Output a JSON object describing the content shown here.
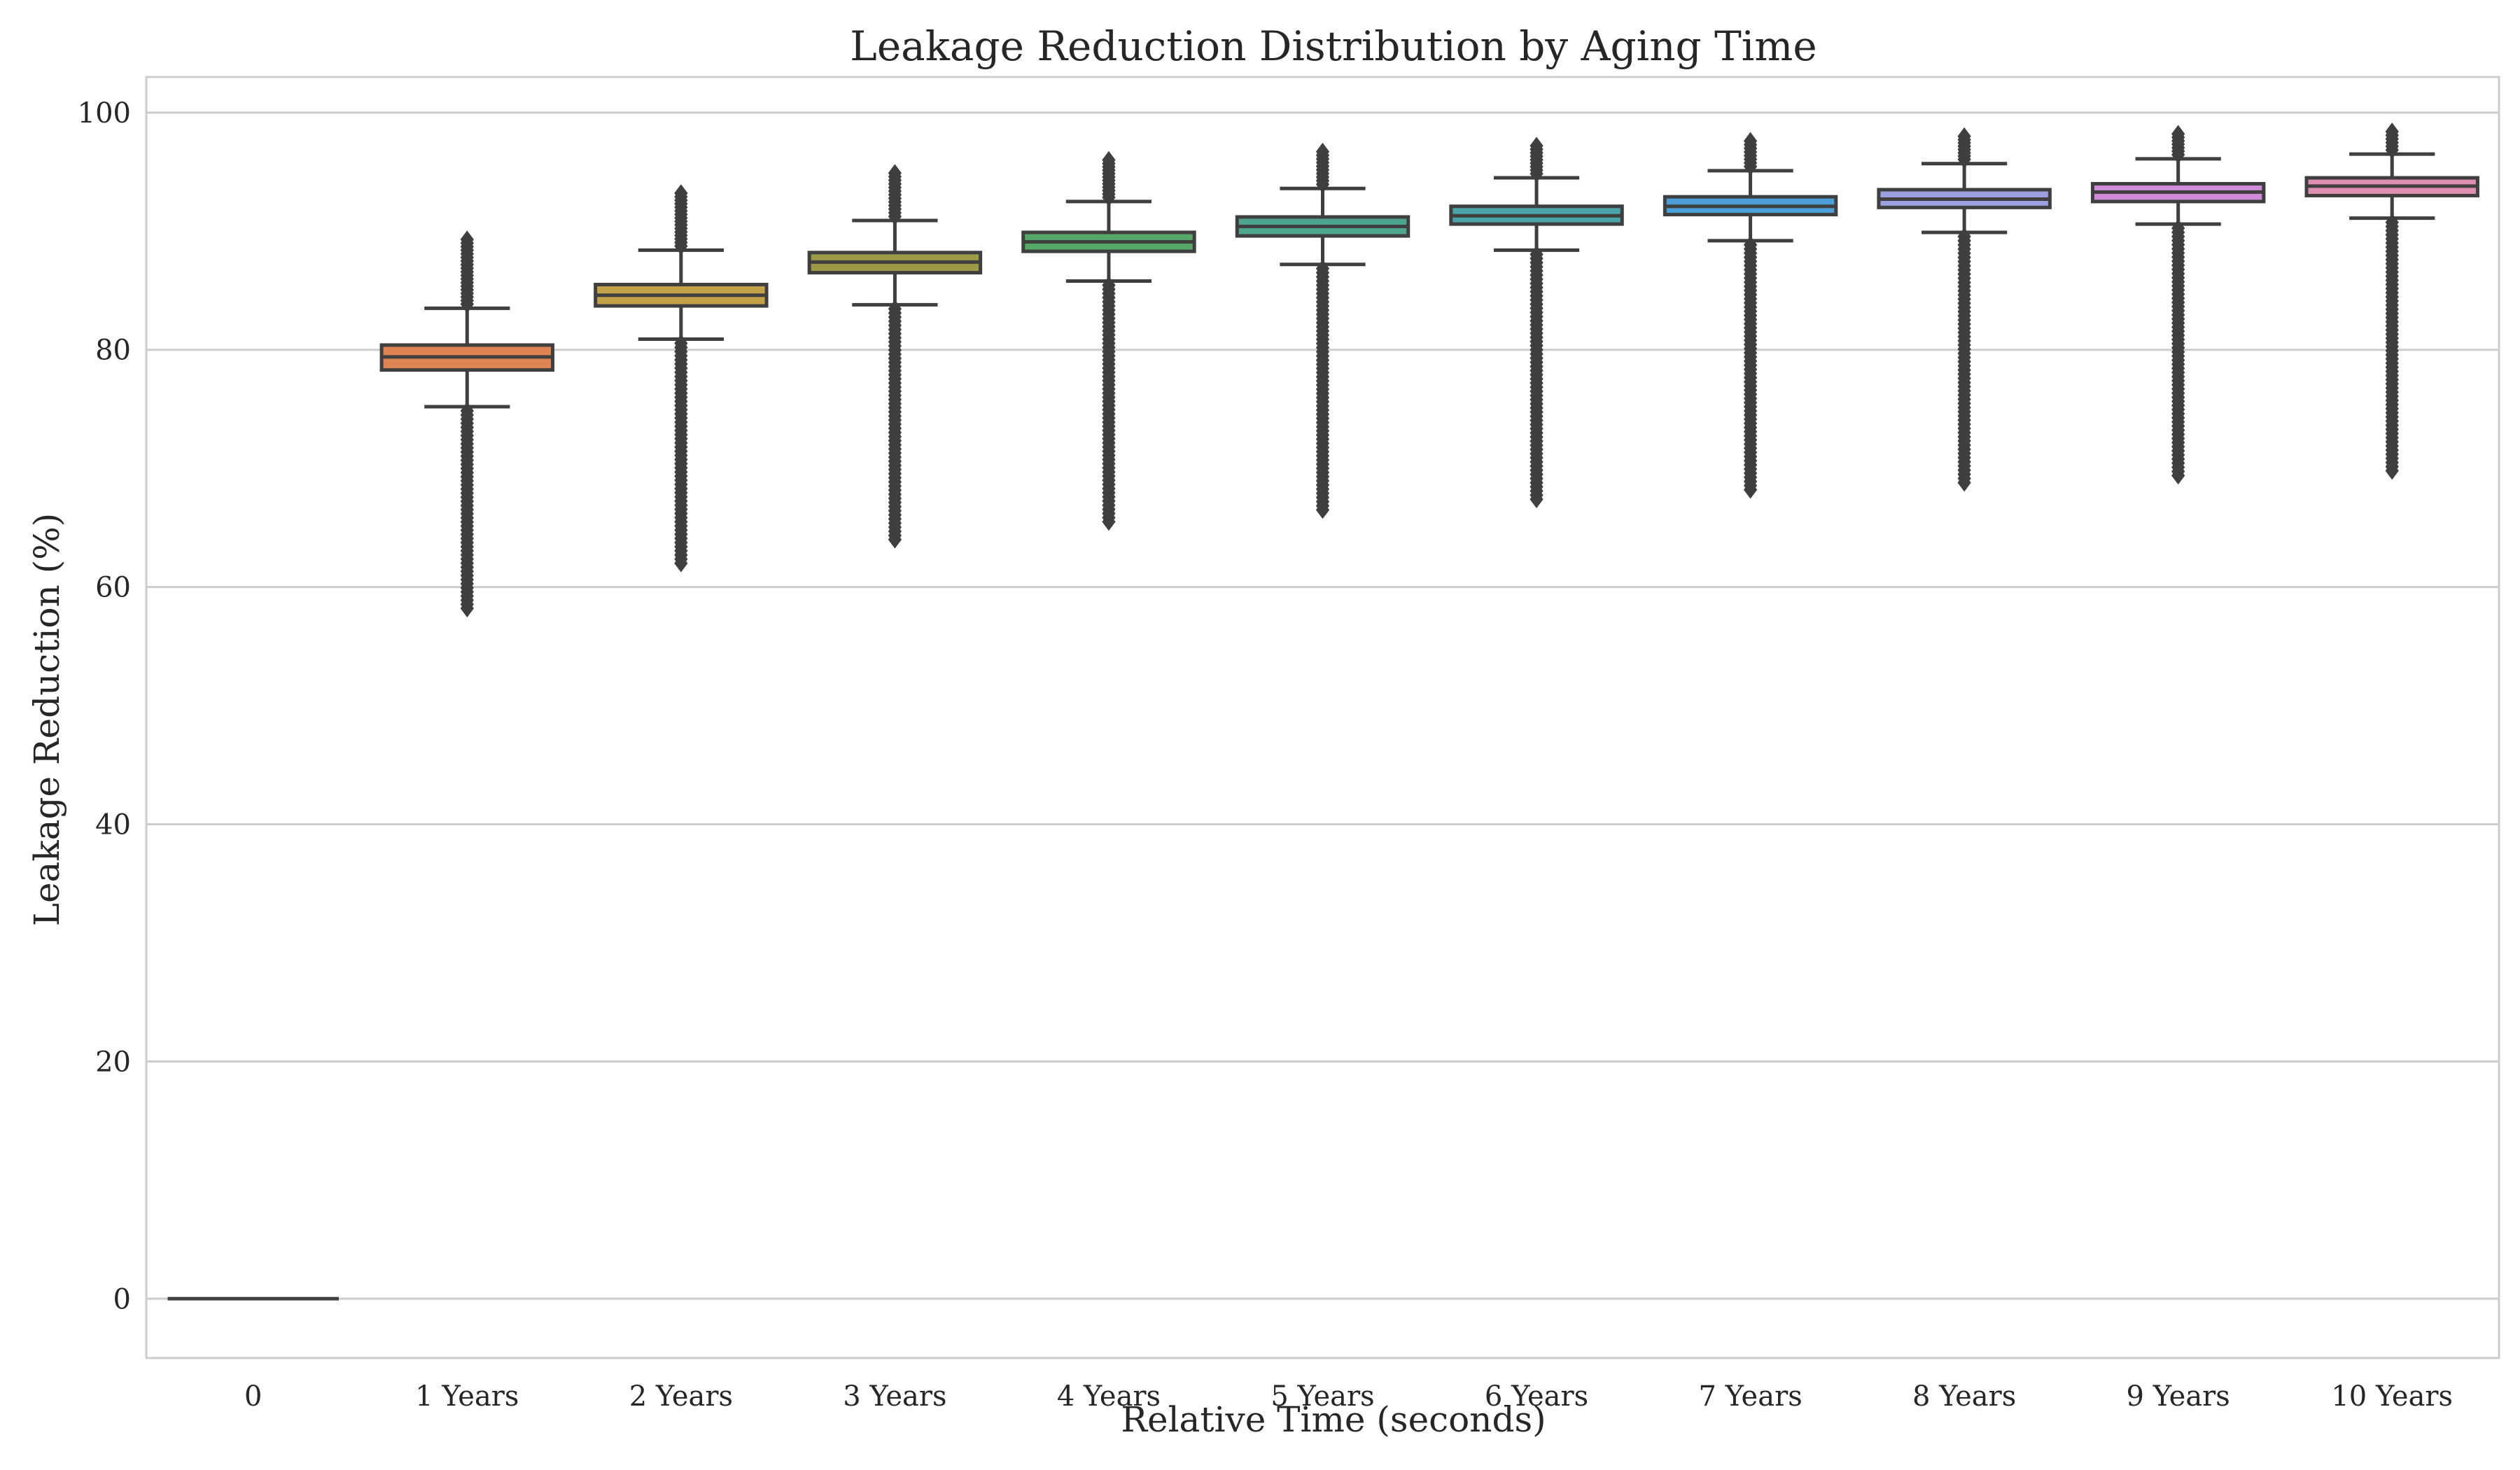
{
  "chart_data": {
    "type": "box",
    "title": "Leakage Reduction Distribution by Aging Time",
    "xlabel": "Relative Time (seconds)",
    "ylabel": "Leakage Reduction (%)",
    "ylim": [
      -5,
      103
    ],
    "yticks": [
      0,
      20,
      40,
      60,
      80,
      100
    ],
    "grid": "y",
    "categories": [
      "0",
      "1 Years",
      "2 Years",
      "3 Years",
      "4 Years",
      "5 Years",
      "6 Years",
      "7 Years",
      "8 Years",
      "9 Years",
      "10 Years"
    ],
    "colors": [
      "#4c72b0",
      "#dd8452",
      "#c4a24a",
      "#9c9a46",
      "#55a868",
      "#4da58e",
      "#4aa3a8",
      "#4c9fd6",
      "#9b9fe0",
      "#d08bd8",
      "#e08fb4"
    ],
    "boxes": [
      {
        "q1": 0.0,
        "median": 0.0,
        "q3": 0.0,
        "whisker_low": 0.0,
        "whisker_high": 0.0,
        "flier_low_min": null,
        "flier_high_max": null
      },
      {
        "q1": 78.3,
        "median": 79.4,
        "q3": 80.4,
        "whisker_low": 75.2,
        "whisker_high": 83.5,
        "flier_low_min": 58.2,
        "flier_high_max": 89.3
      },
      {
        "q1": 83.7,
        "median": 84.6,
        "q3": 85.5,
        "whisker_low": 80.9,
        "whisker_high": 88.4,
        "flier_low_min": 62.0,
        "flier_high_max": 93.2
      },
      {
        "q1": 86.5,
        "median": 87.4,
        "q3": 88.2,
        "whisker_low": 83.8,
        "whisker_high": 90.9,
        "flier_low_min": 64.0,
        "flier_high_max": 94.9
      },
      {
        "q1": 88.3,
        "median": 89.1,
        "q3": 89.9,
        "whisker_low": 85.8,
        "whisker_high": 92.5,
        "flier_low_min": 65.5,
        "flier_high_max": 96.0
      },
      {
        "q1": 89.6,
        "median": 90.4,
        "q3": 91.2,
        "whisker_low": 87.2,
        "whisker_high": 93.6,
        "flier_low_min": 66.5,
        "flier_high_max": 96.7
      },
      {
        "q1": 90.6,
        "median": 91.3,
        "q3": 92.1,
        "whisker_low": 88.4,
        "whisker_high": 94.5,
        "flier_low_min": 67.4,
        "flier_high_max": 97.2
      },
      {
        "q1": 91.4,
        "median": 92.1,
        "q3": 92.9,
        "whisker_low": 89.2,
        "whisker_high": 95.1,
        "flier_low_min": 68.2,
        "flier_high_max": 97.6
      },
      {
        "q1": 92.0,
        "median": 92.7,
        "q3": 93.5,
        "whisker_low": 89.9,
        "whisker_high": 95.7,
        "flier_low_min": 68.8,
        "flier_high_max": 98.0
      },
      {
        "q1": 92.5,
        "median": 93.3,
        "q3": 94.0,
        "whisker_low": 90.6,
        "whisker_high": 96.1,
        "flier_low_min": 69.4,
        "flier_high_max": 98.2
      },
      {
        "q1": 93.0,
        "median": 93.8,
        "q3": 94.5,
        "whisker_low": 91.1,
        "whisker_high": 96.5,
        "flier_low_min": 69.8,
        "flier_high_max": 98.4
      }
    ]
  }
}
